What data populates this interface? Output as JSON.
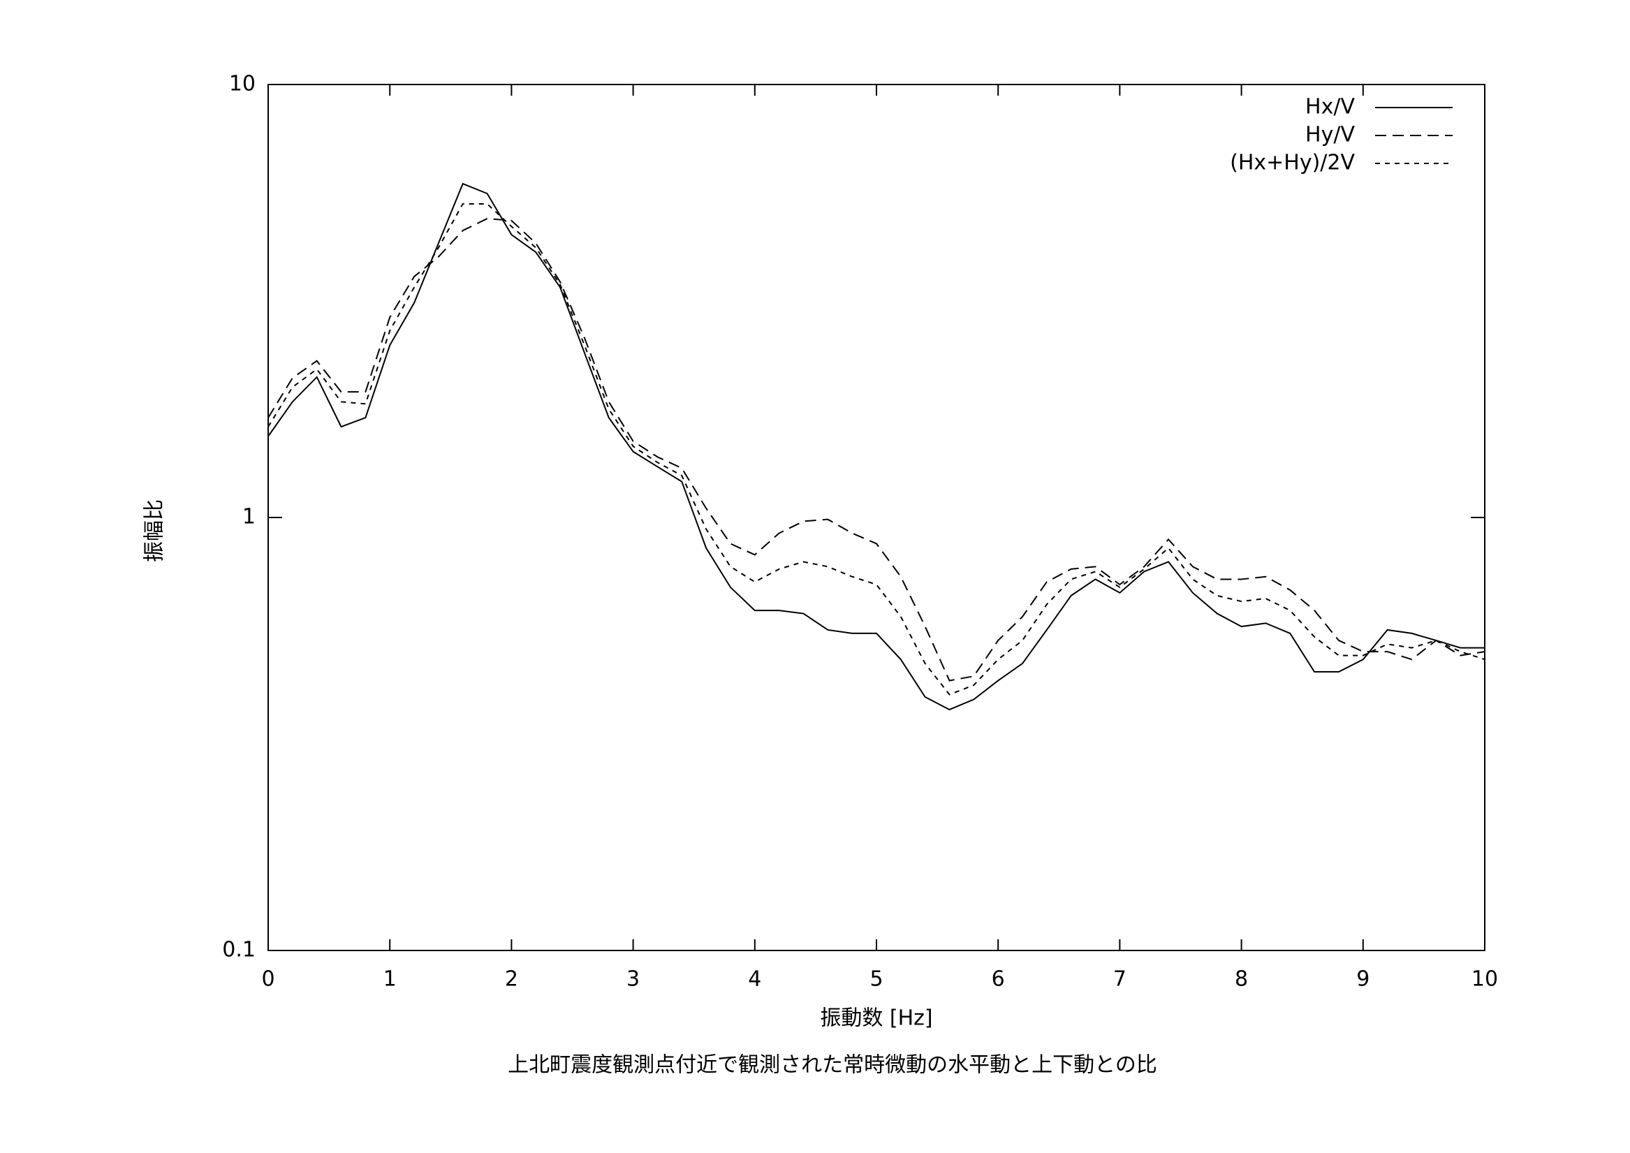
{
  "chart_data": {
    "type": "line",
    "x_label": "振動数 [Hz]",
    "y_label": "振幅比",
    "caption": "上北町震度観測点付近で観測された常時微動の水平動と上下動との比",
    "x": [
      0,
      0.2,
      0.4,
      0.6,
      0.8,
      1,
      1.2,
      1.4,
      1.6,
      1.8,
      2,
      2.2,
      2.4,
      2.6,
      2.8,
      3,
      3.2,
      3.4,
      3.6,
      3.8,
      4,
      4.2,
      4.4,
      4.6,
      4.8,
      5,
      5.2,
      5.4,
      5.6,
      5.8,
      6,
      6.2,
      6.4,
      6.6,
      6.8,
      7,
      7.2,
      7.4,
      7.6,
      7.8,
      8,
      8.2,
      8.4,
      8.6,
      8.8,
      9,
      9.2,
      9.4,
      9.6,
      9.8,
      10
    ],
    "series": [
      {
        "name": "Hx/V",
        "color": "#000000",
        "dash": "none",
        "values": [
          1.54,
          1.85,
          2.11,
          1.62,
          1.7,
          2.5,
          3.13,
          4.3,
          5.9,
          5.6,
          4.5,
          4.1,
          3.4,
          2.4,
          1.7,
          1.42,
          1.31,
          1.21,
          0.85,
          0.69,
          0.61,
          0.61,
          0.6,
          0.55,
          0.54,
          0.54,
          0.47,
          0.385,
          0.36,
          0.38,
          0.42,
          0.46,
          0.55,
          0.66,
          0.72,
          0.67,
          0.75,
          0.79,
          0.67,
          0.6,
          0.56,
          0.57,
          0.54,
          0.44,
          0.44,
          0.47,
          0.55,
          0.54,
          0.52,
          0.5,
          0.5
        ]
      },
      {
        "name": "Hy/V",
        "color": "#000000",
        "dash": "16,9",
        "values": [
          1.7,
          2.1,
          2.3,
          1.95,
          1.95,
          2.9,
          3.6,
          4.0,
          4.6,
          4.9,
          4.85,
          4.3,
          3.5,
          2.6,
          1.85,
          1.5,
          1.38,
          1.3,
          1.05,
          0.87,
          0.82,
          0.92,
          0.98,
          0.99,
          0.92,
          0.87,
          0.73,
          0.56,
          0.42,
          0.43,
          0.52,
          0.59,
          0.71,
          0.76,
          0.77,
          0.7,
          0.77,
          0.89,
          0.77,
          0.72,
          0.72,
          0.73,
          0.68,
          0.61,
          0.52,
          0.49,
          0.49,
          0.47,
          0.52,
          0.48,
          0.49
        ]
      },
      {
        "name": "(Hx+Hy)/2V",
        "color": "#000000",
        "dash": "7,7",
        "values": [
          1.62,
          2.0,
          2.2,
          1.85,
          1.83,
          2.7,
          3.4,
          4.2,
          5.3,
          5.3,
          4.7,
          4.2,
          3.45,
          2.5,
          1.78,
          1.46,
          1.34,
          1.25,
          0.94,
          0.77,
          0.71,
          0.76,
          0.79,
          0.77,
          0.73,
          0.7,
          0.59,
          0.46,
          0.39,
          0.41,
          0.47,
          0.52,
          0.63,
          0.72,
          0.75,
          0.69,
          0.76,
          0.85,
          0.72,
          0.66,
          0.64,
          0.65,
          0.61,
          0.53,
          0.48,
          0.48,
          0.51,
          0.5,
          0.52,
          0.49,
          0.47
        ]
      }
    ],
    "xlim": [
      0,
      10
    ],
    "xticks": [
      0,
      1,
      2,
      3,
      4,
      5,
      6,
      7,
      8,
      9,
      10
    ],
    "ylim": [
      0.1,
      10
    ],
    "yticks": [
      0.1,
      1,
      10
    ],
    "log_y": true,
    "grid": false,
    "legend": "top-right"
  }
}
